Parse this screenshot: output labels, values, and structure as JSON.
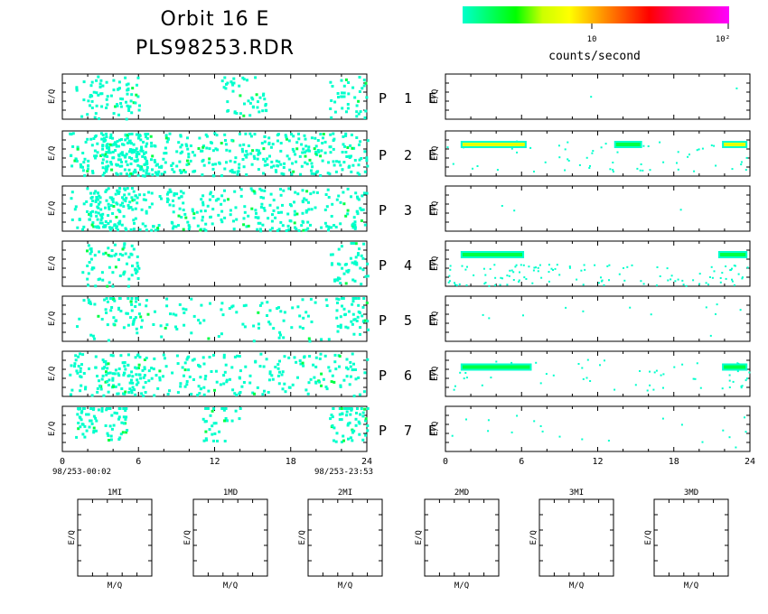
{
  "title": "Orbit 16 E",
  "subtitle": "PLS98253.RDR",
  "colorbar": {
    "label": "counts/second",
    "tick_10": "10",
    "tick_100": "10²",
    "colors": [
      "#00ffcc",
      "#00ff66",
      "#00ff00",
      "#ccff00",
      "#ffff00",
      "#ffaa00",
      "#ff5500",
      "#ff0000",
      "#ff0066",
      "#ff00aa",
      "#ff00ff"
    ]
  },
  "panel_ylabel": "E/Q",
  "x_ticks": [
    "0",
    "6",
    "12",
    "18",
    "24"
  ],
  "time_start": "98/253-00:02",
  "time_end": "98/253-23:53",
  "rows": [
    {
      "p": "P",
      "n": "1",
      "e": "E"
    },
    {
      "p": "P",
      "n": "2",
      "e": "E"
    },
    {
      "p": "P",
      "n": "3",
      "e": "E"
    },
    {
      "p": "P",
      "n": "4",
      "e": "E"
    },
    {
      "p": "P",
      "n": "5",
      "e": "E"
    },
    {
      "p": "P",
      "n": "6",
      "e": "E"
    },
    {
      "p": "P",
      "n": "7",
      "e": "E"
    }
  ],
  "bottom_panels": [
    {
      "title": "1MI",
      "xlabel": "M/Q",
      "ylabel": "E/Q"
    },
    {
      "title": "1MD",
      "xlabel": "M/Q",
      "ylabel": "E/Q"
    },
    {
      "title": "2MI",
      "xlabel": "M/Q",
      "ylabel": "E/Q"
    },
    {
      "title": "2MD",
      "xlabel": "M/Q",
      "ylabel": "E/Q"
    },
    {
      "title": "3MI",
      "xlabel": "M/Q",
      "ylabel": "E/Q"
    },
    {
      "title": "3MD",
      "xlabel": "M/Q",
      "ylabel": "E/Q"
    }
  ],
  "chart_data": {
    "type": "heatmap",
    "title": "Orbit 16 E",
    "subtitle": "PLS98253.RDR",
    "xlabel": "",
    "ylabel": "E/Q",
    "xlim": [
      0,
      24
    ],
    "x_ticks": [
      0,
      6,
      12,
      18,
      24
    ],
    "colorbar_scale": "log",
    "colorbar_label": "counts/second",
    "colorbar_range": [
      1,
      100
    ],
    "colors": {
      "cyan": "#00ffcc",
      "green": "#00ff44",
      "yellow": "#e6ff00"
    },
    "left_panels": [
      {
        "row": 1,
        "clusters": [
          [
            1,
            6,
            0.5,
            0.35
          ],
          [
            12.5,
            16,
            0.5,
            0.3
          ],
          [
            21,
            24,
            0.5,
            0.3
          ]
        ]
      },
      {
        "row": 2,
        "clusters": [
          [
            0.5,
            24,
            0.5,
            0.4
          ],
          [
            3,
            7,
            0.5,
            0.6
          ]
        ]
      },
      {
        "row": 3,
        "clusters": [
          [
            0.5,
            24,
            0.5,
            0.3
          ],
          [
            2,
            6,
            0.45,
            0.5
          ]
        ]
      },
      {
        "row": 4,
        "clusters": [
          [
            1.5,
            6,
            0.5,
            0.35
          ],
          [
            21,
            24,
            0.45,
            0.35
          ]
        ]
      },
      {
        "row": 5,
        "clusters": [
          [
            1,
            24,
            0.5,
            0.12
          ],
          [
            3,
            6,
            0.3,
            0.3
          ],
          [
            21.5,
            24,
            0.3,
            0.3
          ]
        ]
      },
      {
        "row": 6,
        "clusters": [
          [
            0.5,
            24,
            0.5,
            0.25
          ],
          [
            3,
            6.5,
            0.5,
            0.35
          ]
        ]
      },
      {
        "row": 7,
        "clusters": [
          [
            1,
            5,
            0.25,
            0.45
          ],
          [
            11,
            14,
            0.3,
            0.25
          ],
          [
            21,
            24,
            0.3,
            0.45
          ]
        ]
      }
    ],
    "right_panels": [
      {
        "row": 1,
        "bands": []
      },
      {
        "row": 2,
        "bands": [
          {
            "x0": 1.2,
            "x1": 6.4,
            "y": 0.3,
            "level": "yellow"
          },
          {
            "x0": 13.3,
            "x1": 15.5,
            "y": 0.3,
            "level": "green"
          },
          {
            "x0": 21.8,
            "x1": 23.8,
            "y": 0.3,
            "level": "yellow"
          }
        ]
      },
      {
        "row": 3,
        "bands": []
      },
      {
        "row": 4,
        "bands": [
          {
            "x0": 1.2,
            "x1": 6.2,
            "y": 0.3,
            "level": "green"
          },
          {
            "x0": 21.5,
            "x1": 23.8,
            "y": 0.3,
            "level": "green"
          }
        ]
      },
      {
        "row": 5,
        "bands": []
      },
      {
        "row": 6,
        "bands": [
          {
            "x0": 1.2,
            "x1": 6.8,
            "y": 0.35,
            "level": "green"
          },
          {
            "x0": 21.8,
            "x1": 23.8,
            "y": 0.35,
            "level": "green"
          }
        ]
      },
      {
        "row": 7,
        "bands": []
      }
    ]
  }
}
